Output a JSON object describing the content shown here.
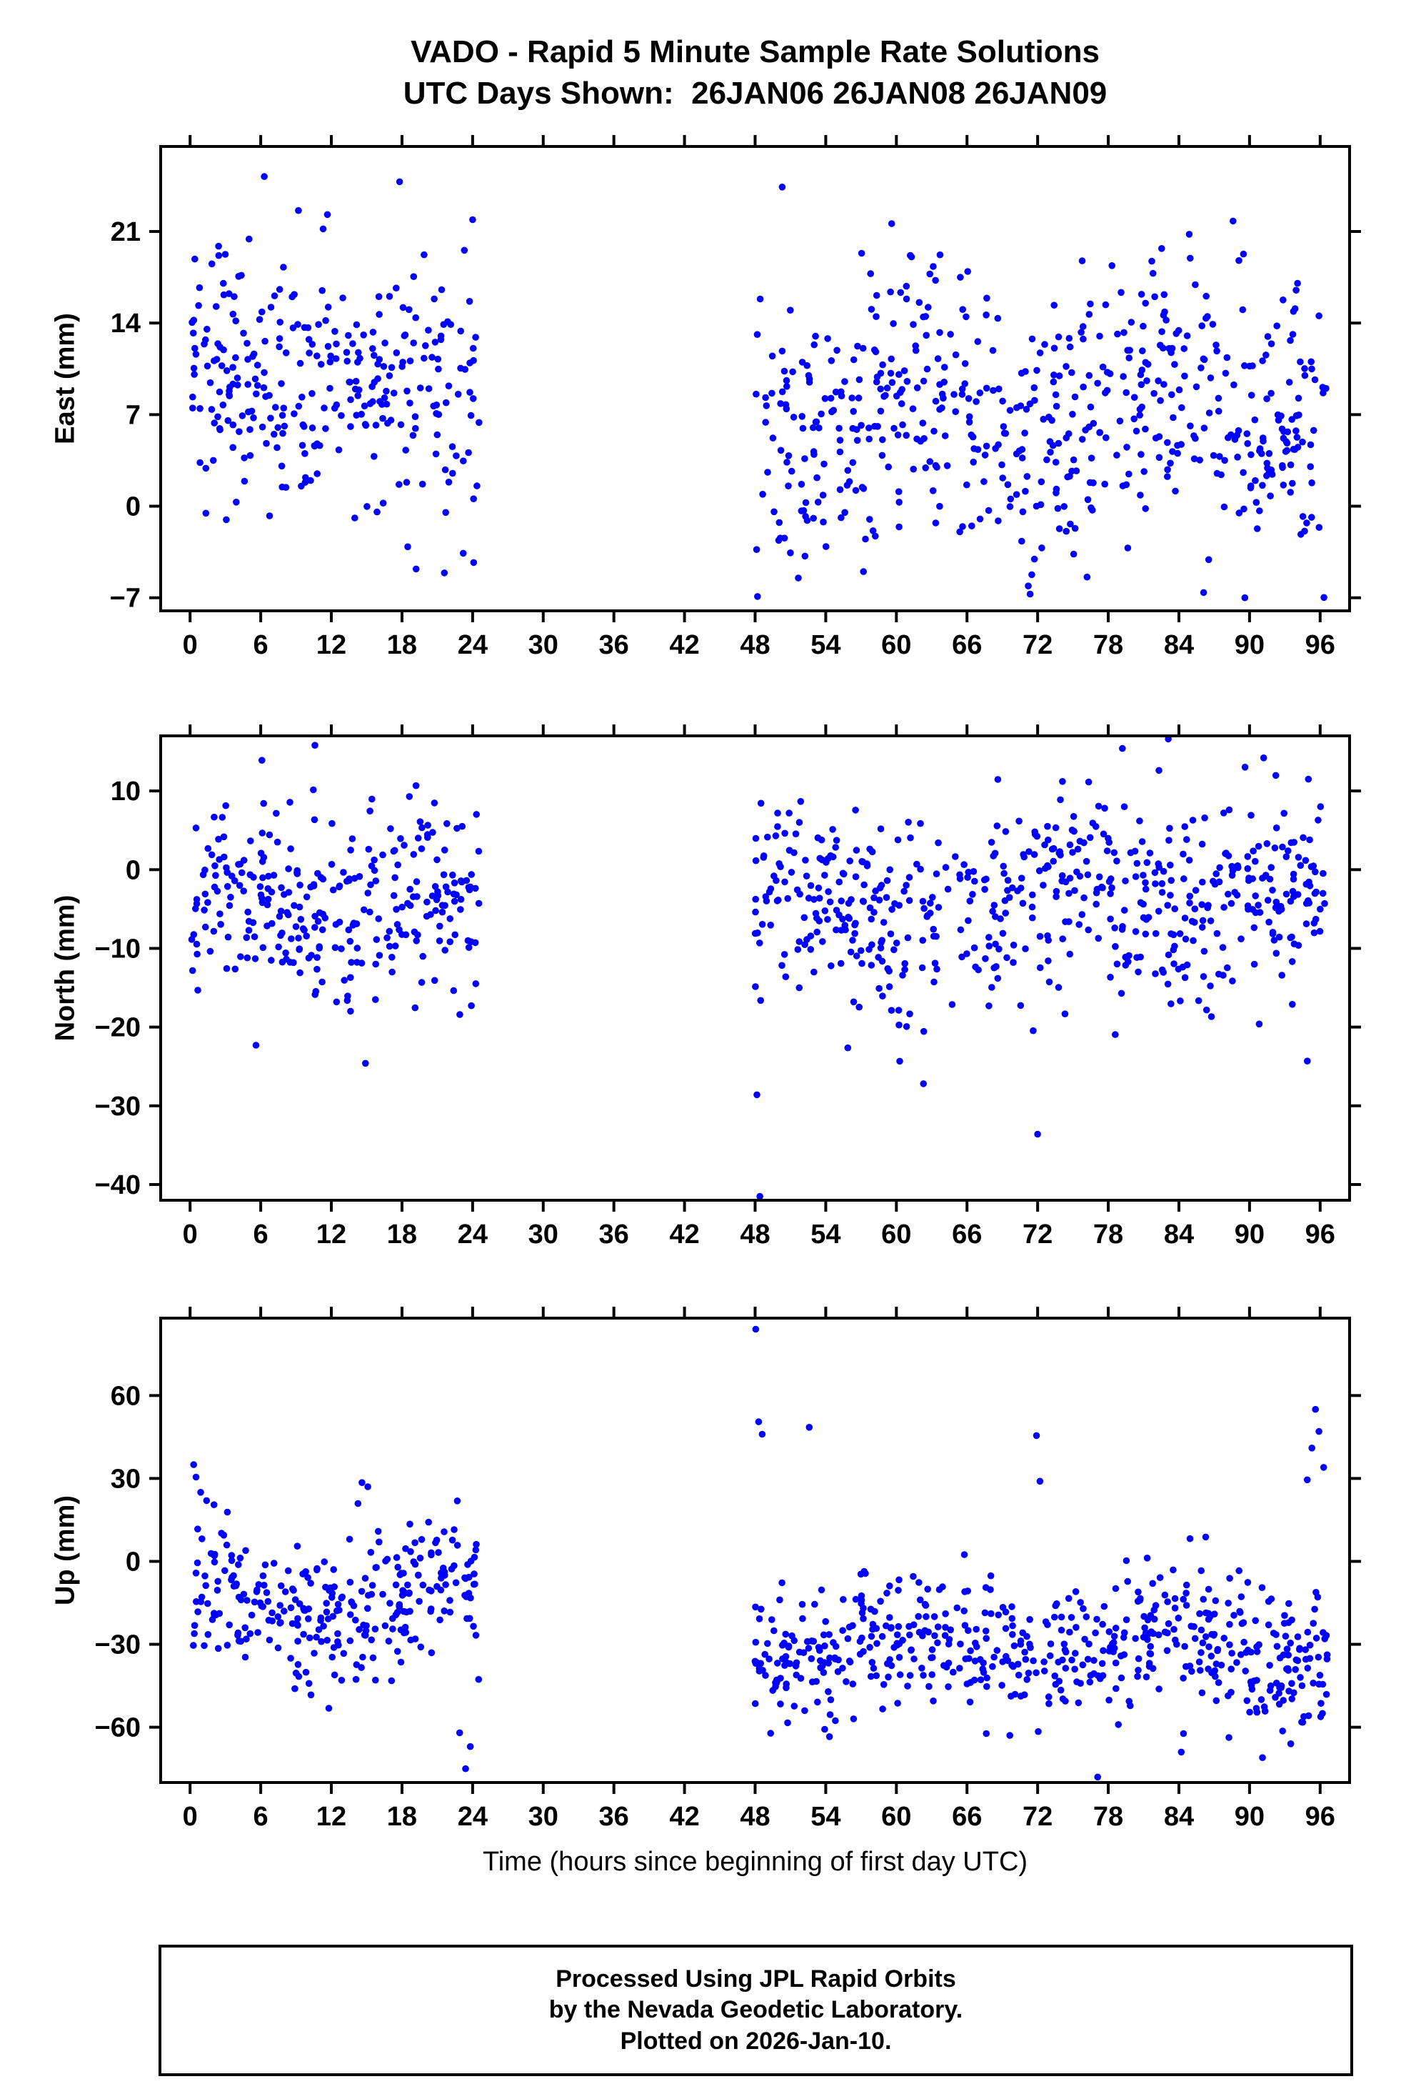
{
  "chart_meta": {
    "title_line1": "VADO - Rapid 5 Minute Sample Rate Solutions",
    "title_line2": "UTC Days Shown:  26JAN06 26JAN08 26JAN09",
    "station": "VADO",
    "utc_days_shown": [
      "26JAN06",
      "26JAN08",
      "26JAN09"
    ]
  },
  "footer": {
    "line1": "Processed Using JPL Rapid Orbits",
    "line2": "by the Nevada Geodetic Laboratory.",
    "line3": "Plotted on 2026-Jan-10."
  },
  "chart_data": [
    {
      "type": "scatter",
      "name": "east",
      "ylabel": "East (mm)",
      "xlabel": "",
      "xlim": [
        -2.5,
        98.5
      ],
      "ylim": [
        -8,
        27.5
      ],
      "xticks": [
        0,
        6,
        12,
        18,
        24,
        30,
        36,
        42,
        48,
        54,
        60,
        66,
        72,
        78,
        84,
        90,
        96
      ],
      "yticks": [
        -7,
        0,
        7,
        14,
        21
      ],
      "marker_color": "#0000ff",
      "marker_radius": 4.8,
      "seed": 11,
      "clusters": [
        {
          "x0": 0.1,
          "x1": 24.6,
          "n": 290,
          "mean": 9.2,
          "sd": 4.6,
          "ymin": -5.5,
          "ymax": 23.5,
          "wave": {
            "amp": 1.5,
            "period": 14,
            "phase": 0
          }
        },
        {
          "x0": 47.9,
          "x1": 96.6,
          "n": 560,
          "mean": 7.3,
          "sd": 5.2,
          "ymin": -7.2,
          "ymax": 22.5,
          "wave": {
            "amp": 2,
            "period": 21,
            "phase": 2
          }
        }
      ],
      "outliers": [
        [
          6.3,
          25.2
        ],
        [
          9.2,
          22.6
        ],
        [
          17.8,
          24.8
        ],
        [
          24.0,
          21.9
        ],
        [
          11.3,
          21.2
        ],
        [
          19.2,
          -4.8
        ],
        [
          21.6,
          -5.1
        ],
        [
          23.2,
          -3.6
        ],
        [
          50.3,
          24.4
        ],
        [
          59.6,
          21.6
        ],
        [
          88.6,
          21.8
        ],
        [
          48.2,
          -6.9
        ],
        [
          57.2,
          -5.0
        ],
        [
          71.2,
          -6.1
        ],
        [
          86.1,
          -6.6
        ],
        [
          89.6,
          -7.0
        ]
      ]
    },
    {
      "type": "scatter",
      "name": "north",
      "ylabel": "North (mm)",
      "xlabel": "",
      "xlim": [
        -2.5,
        98.5
      ],
      "ylim": [
        -42,
        17
      ],
      "xticks": [
        0,
        6,
        12,
        18,
        24,
        30,
        36,
        42,
        48,
        54,
        60,
        66,
        72,
        78,
        84,
        90,
        96
      ],
      "yticks": [
        -40,
        -30,
        -20,
        -10,
        0,
        10
      ],
      "marker_color": "#0000ff",
      "marker_radius": 4.8,
      "seed": 22,
      "clusters": [
        {
          "x0": 0.1,
          "x1": 24.6,
          "n": 290,
          "mean": -3.8,
          "sd": 5.8,
          "ymin": -20,
          "ymax": 13,
          "wave": {
            "amp": 1.5,
            "period": 16,
            "phase": 0.5
          }
        },
        {
          "x0": 47.9,
          "x1": 96.6,
          "n": 560,
          "mean": -4.2,
          "sd": 6.2,
          "ymin": -26,
          "ymax": 13.5,
          "wave": {
            "amp": 2,
            "period": 24,
            "phase": 1
          }
        }
      ],
      "outliers": [
        [
          5.6,
          -22.3
        ],
        [
          14.9,
          -24.6
        ],
        [
          10.6,
          15.8
        ],
        [
          6.1,
          13.9
        ],
        [
          48.4,
          -41.5
        ],
        [
          48.15,
          -28.6
        ],
        [
          62.3,
          -27.2
        ],
        [
          72.0,
          -33.6
        ],
        [
          79.2,
          15.4
        ],
        [
          83.1,
          16.6
        ],
        [
          91.2,
          14.2
        ],
        [
          95.0,
          11.5
        ]
      ]
    },
    {
      "type": "scatter",
      "name": "up",
      "ylabel": "Up (mm)",
      "xlabel": "Time (hours since beginning of first day UTC)",
      "xlim": [
        -2.5,
        98.5
      ],
      "ylim": [
        -80,
        88
      ],
      "xticks": [
        0,
        6,
        12,
        18,
        24,
        30,
        36,
        42,
        48,
        54,
        60,
        66,
        72,
        78,
        84,
        90,
        96
      ],
      "yticks": [
        -60,
        -30,
        0,
        30,
        60
      ],
      "marker_color": "#0000ff",
      "marker_radius": 4.8,
      "seed": 33,
      "clusters": [
        {
          "x0": 0.1,
          "x1": 24.6,
          "n": 290,
          "mean": -17,
          "sd": 13,
          "ymin": -55,
          "ymax": 25,
          "wave": {
            "amp": 6,
            "period": 20,
            "phase": 1.2
          }
        },
        {
          "x0": 47.9,
          "x1": 96.6,
          "n": 560,
          "mean": -31,
          "sd": 12,
          "ymin": -66,
          "ymax": 12,
          "wave": {
            "amp": 6,
            "period": 23,
            "phase": 4
          }
        }
      ],
      "outliers": [
        [
          0.3,
          35
        ],
        [
          0.5,
          30.5
        ],
        [
          0.9,
          25
        ],
        [
          1.4,
          22
        ],
        [
          14.6,
          28.5
        ],
        [
          15.1,
          27
        ],
        [
          23.4,
          -75
        ],
        [
          23.8,
          -67
        ],
        [
          22.9,
          -62
        ],
        [
          48.05,
          84
        ],
        [
          48.3,
          50.5
        ],
        [
          48.6,
          46
        ],
        [
          52.6,
          48.5
        ],
        [
          71.9,
          45.5
        ],
        [
          72.2,
          29
        ],
        [
          77.1,
          -78
        ],
        [
          84.2,
          -69
        ],
        [
          91.1,
          -71
        ],
        [
          93.5,
          -66
        ],
        [
          94.9,
          29.5
        ],
        [
          95.3,
          41
        ],
        [
          95.6,
          55
        ],
        [
          95.9,
          47
        ],
        [
          96.3,
          34
        ]
      ]
    }
  ]
}
